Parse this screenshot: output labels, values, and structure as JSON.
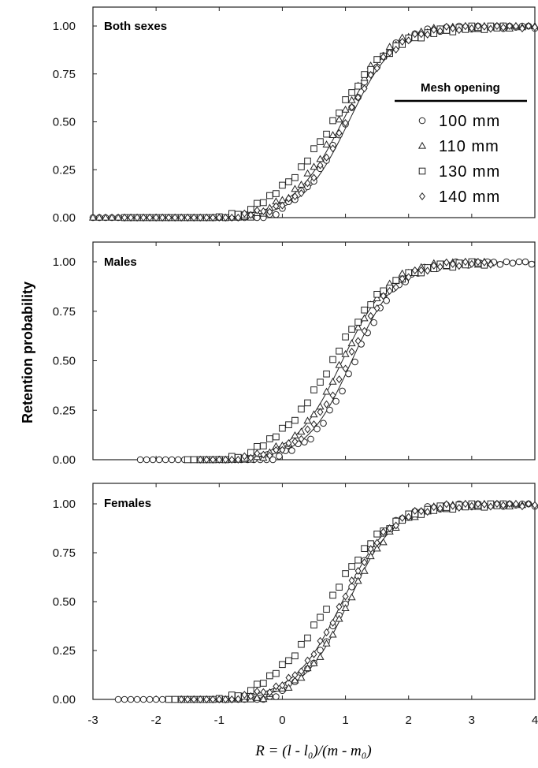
{
  "chart_data": [
    {
      "type": "scatter",
      "title": "Both sexes",
      "xlabel": "R = (l - l₀)/(m - m₀)",
      "ylabel": "Retention probability",
      "xlim": [
        -3,
        4
      ],
      "ylim": [
        0,
        1.08
      ],
      "yticks": [
        "0.00",
        "0.25",
        "0.50",
        "0.75",
        "1.00"
      ],
      "xticks": [
        "-3",
        "-2",
        "-1",
        "0",
        "1",
        "2",
        "3",
        "4"
      ],
      "grid": false,
      "legend": {
        "title": "Mesh opening",
        "position": "right",
        "entries": [
          "100 mm",
          "110 mm",
          "130 mm",
          "140 mm"
        ]
      },
      "curve_params": [
        {
          "x50": 0.95,
          "k": 2.55
        },
        {
          "x50": 1.05,
          "k": 2.7
        }
      ],
      "series": [
        {
          "name": "100 mm",
          "marker": "circle",
          "x50": 1.0,
          "k": 2.75,
          "xrange": [
            -3.0,
            4.0
          ],
          "step": 0.1
        },
        {
          "name": "110 mm",
          "marker": "triangle",
          "x50": 0.9,
          "k": 2.55,
          "xrange": [
            -3.0,
            4.0
          ],
          "step": 0.1
        },
        {
          "name": "130 mm",
          "marker": "square",
          "x50": 0.8,
          "k": 2.1,
          "xrange": [
            -2.5,
            3.5
          ],
          "step": 0.1
        },
        {
          "name": "140 mm",
          "marker": "diamond",
          "x50": 1.0,
          "k": 2.6,
          "xrange": [
            -2.5,
            4.0
          ],
          "step": 0.1
        }
      ]
    },
    {
      "type": "scatter",
      "title": "Males",
      "xlim": [
        -3,
        4
      ],
      "ylim": [
        0,
        1.08
      ],
      "yticks": [
        "0.00",
        "0.25",
        "0.50",
        "0.75",
        "1.00"
      ],
      "grid": false,
      "curve_params": [
        {
          "x50": 0.95,
          "k": 2.65
        },
        {
          "x50": 1.1,
          "k": 2.8
        }
      ],
      "series": [
        {
          "name": "100 mm",
          "marker": "circle",
          "x50": 1.15,
          "k": 2.9,
          "xrange": [
            -2.25,
            4.0
          ],
          "step": 0.1
        },
        {
          "name": "110 mm",
          "marker": "triangle",
          "x50": 0.95,
          "k": 2.7,
          "xrange": [
            -1.3,
            3.3
          ],
          "step": 0.1
        },
        {
          "name": "130 mm",
          "marker": "square",
          "x50": 0.8,
          "k": 2.2,
          "xrange": [
            -1.5,
            3.2
          ],
          "step": 0.1
        },
        {
          "name": "140 mm",
          "marker": "diamond",
          "x50": 1.05,
          "k": 2.7,
          "xrange": [
            -1.3,
            3.3
          ],
          "step": 0.1
        }
      ]
    },
    {
      "type": "scatter",
      "title": "Females",
      "xlim": [
        -3,
        4
      ],
      "ylim": [
        0,
        1.08
      ],
      "yticks": [
        "0.00",
        "0.25",
        "0.50",
        "0.75",
        "1.00"
      ],
      "xticks": [
        "-3",
        "-2",
        "-1",
        "0",
        "1",
        "2",
        "3",
        "4"
      ],
      "grid": false,
      "curve_params": [
        {
          "x50": 0.95,
          "k": 2.6
        },
        {
          "x50": 1.05,
          "k": 2.75
        }
      ],
      "series": [
        {
          "name": "100 mm",
          "marker": "circle",
          "x50": 1.0,
          "k": 2.8,
          "xrange": [
            -2.6,
            4.0
          ],
          "step": 0.1
        },
        {
          "name": "110 mm",
          "marker": "triangle",
          "x50": 1.05,
          "k": 2.7,
          "xrange": [
            -1.6,
            3.8
          ],
          "step": 0.1
        },
        {
          "name": "130 mm",
          "marker": "square",
          "x50": 0.75,
          "k": 2.15,
          "xrange": [
            -1.8,
            3.5
          ],
          "step": 0.1
        },
        {
          "name": "140 mm",
          "marker": "diamond",
          "x50": 0.95,
          "k": 2.6,
          "xrange": [
            -1.6,
            4.0
          ],
          "step": 0.1
        }
      ]
    }
  ]
}
